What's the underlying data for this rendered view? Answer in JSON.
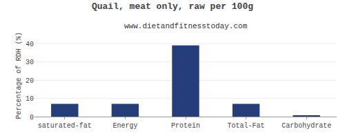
{
  "chart_data": {
    "type": "bar",
    "title": "Quail, meat only, raw per 100g",
    "subtitle": "www.dietandfitnesstoday.com",
    "categories": [
      "saturated-fat",
      "Energy",
      "Protein",
      "Total-Fat",
      "Carbohydrate"
    ],
    "values": [
      7.0,
      7.0,
      39.0,
      7.0,
      0.5
    ],
    "color": "#253d7a",
    "ylabel": "Percentage of RDH (%)",
    "ylim": [
      0,
      45
    ],
    "yticks": [
      0,
      10,
      20,
      30,
      40
    ],
    "grid": true
  }
}
